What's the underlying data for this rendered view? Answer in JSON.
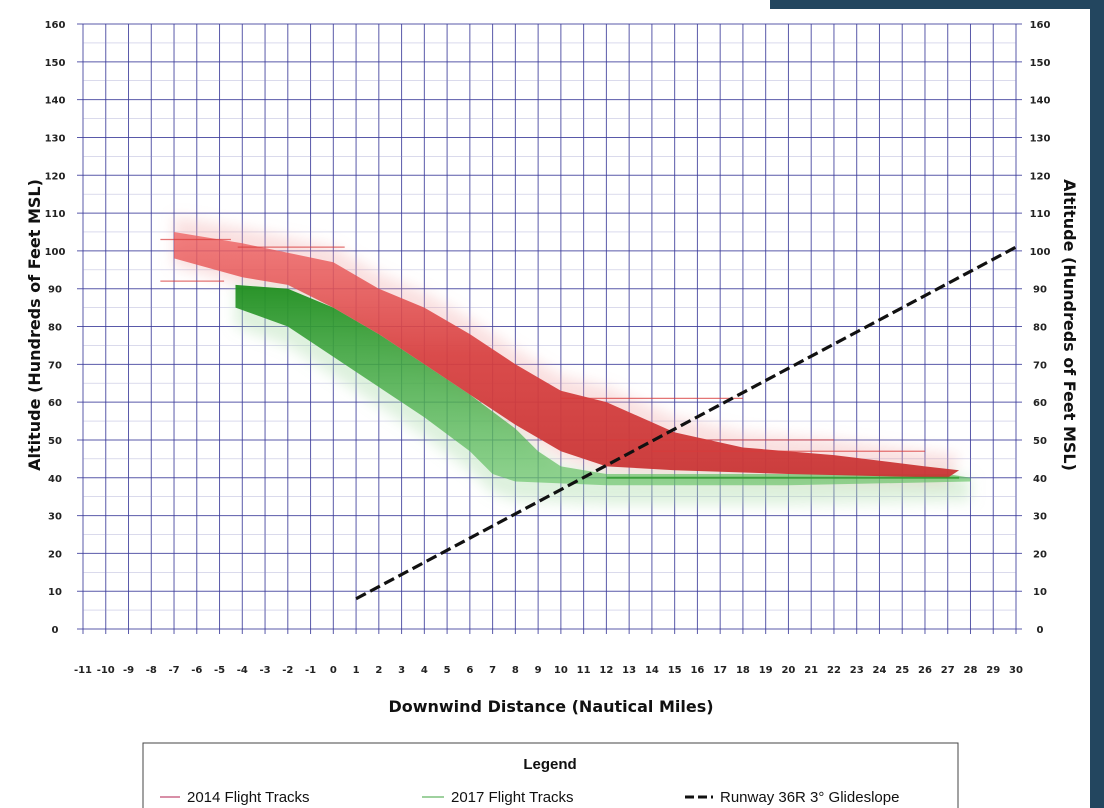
{
  "chart_data": {
    "type": "line",
    "xlabel": "Downwind Distance (Nautical Miles)",
    "ylabel": "Altitude (Hundreds of Feet MSL)",
    "ylabel_right": "Altitude (Hundreds of Feet MSL)",
    "xlim": [
      -11,
      30
    ],
    "ylim": [
      0,
      160
    ],
    "x_ticks": [
      -11,
      -10,
      -9,
      -8,
      -7,
      -6,
      -5,
      -4,
      -3,
      -2,
      -1,
      0,
      1,
      2,
      3,
      4,
      5,
      6,
      7,
      8,
      9,
      10,
      11,
      12,
      13,
      14,
      15,
      16,
      17,
      18,
      19,
      20,
      21,
      22,
      23,
      24,
      25,
      26,
      27,
      28,
      29,
      30
    ],
    "y_ticks": [
      0,
      10,
      20,
      30,
      40,
      50,
      60,
      70,
      80,
      90,
      100,
      110,
      120,
      130,
      140,
      150,
      160
    ],
    "grid": true,
    "legend": {
      "title": "Legend",
      "position": "bottom"
    },
    "series": [
      {
        "name": "2014 Flight Tracks",
        "color": "#d93b3b",
        "upper": [
          [
            -7,
            105
          ],
          [
            -4,
            102
          ],
          [
            0,
            97
          ],
          [
            2,
            90
          ],
          [
            4,
            85
          ],
          [
            6,
            78
          ],
          [
            8,
            70
          ],
          [
            10,
            63
          ],
          [
            12,
            60
          ],
          [
            15,
            52
          ],
          [
            18,
            48
          ],
          [
            22,
            46
          ],
          [
            26,
            43
          ],
          [
            27.5,
            42
          ]
        ],
        "lower": [
          [
            -7,
            98
          ],
          [
            -4,
            93
          ],
          [
            -2,
            91
          ],
          [
            0,
            85
          ],
          [
            2,
            78
          ],
          [
            4,
            70
          ],
          [
            6,
            62
          ],
          [
            8,
            54
          ],
          [
            10,
            47
          ],
          [
            12,
            43
          ],
          [
            15,
            42
          ],
          [
            20,
            41
          ],
          [
            27,
            40
          ]
        ]
      },
      {
        "name": "2017 Flight Tracks",
        "color": "#2d9a2d",
        "upper": [
          [
            -4.3,
            91
          ],
          [
            -2,
            90
          ],
          [
            0,
            85
          ],
          [
            2,
            78
          ],
          [
            4,
            70
          ],
          [
            6,
            62
          ],
          [
            8,
            53
          ],
          [
            9,
            47
          ],
          [
            10,
            43
          ],
          [
            12,
            41
          ],
          [
            20,
            41
          ],
          [
            27,
            41
          ],
          [
            28,
            40
          ]
        ],
        "lower": [
          [
            -4.3,
            85
          ],
          [
            -2,
            80
          ],
          [
            0,
            72
          ],
          [
            2,
            64
          ],
          [
            4,
            56
          ],
          [
            6,
            47
          ],
          [
            7,
            41
          ],
          [
            8,
            39
          ],
          [
            12,
            38
          ],
          [
            20,
            38
          ],
          [
            28,
            39
          ]
        ]
      },
      {
        "name": "Runway 36R 3° Glideslope",
        "color": "#111111",
        "style": "dashed",
        "points": [
          [
            1,
            8
          ],
          [
            30,
            101
          ]
        ]
      }
    ]
  }
}
